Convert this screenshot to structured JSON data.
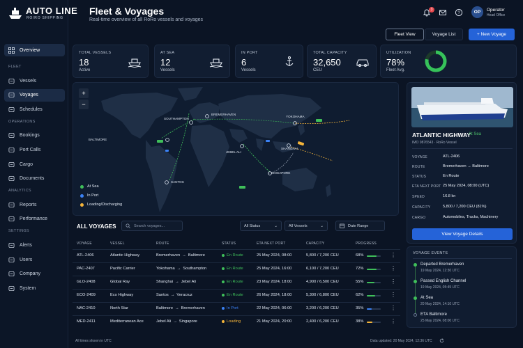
{
  "brand": {
    "name": "AUTO LINE",
    "tagline": "RO/RO SHIPPING"
  },
  "sidebar": {
    "overview": "Overview",
    "sections": [
      {
        "title": "FLEET",
        "items": [
          "Vessels",
          "Voyages",
          "Schedules"
        ]
      },
      {
        "title": "OPERATIONS",
        "items": [
          "Bookings",
          "Port Calls",
          "Cargo",
          "Documents"
        ]
      },
      {
        "title": "ANALYTICS",
        "items": [
          "Reports",
          "Performance"
        ]
      },
      {
        "title": "SETTINGS",
        "items": [
          "Alerts",
          "Users",
          "Company",
          "System"
        ]
      }
    ],
    "active": "Voyages"
  },
  "header": {
    "title": "Fleet & Voyages",
    "subtitle": "Real-time overview of all RoRo vessels and voyages",
    "notif_count": "3"
  },
  "user": {
    "initials": "OP",
    "name": "Operator",
    "role": "Head Office"
  },
  "toolbar": {
    "fleet_view": "Fleet View",
    "voyage_list": "Voyage List",
    "new_voyage": "+ New Voyage"
  },
  "kpis": [
    {
      "label": "TOTAL VESSELS",
      "value": "18",
      "sub": "Active",
      "icon": "ship-icon"
    },
    {
      "label": "AT SEA",
      "value": "12",
      "sub": "Vessels",
      "icon": "ship-waves-icon"
    },
    {
      "label": "IN PORT",
      "value": "6",
      "sub": "Vessels",
      "icon": "anchor-icon"
    },
    {
      "label": "TOTAL CAPACITY",
      "value": "32,650",
      "sub": "CEU",
      "icon": "car-icon"
    }
  ],
  "utilization": {
    "label": "UTILIZATION",
    "value": "78%",
    "sub": "Fleet Avg.",
    "fraction": 0.78
  },
  "map": {
    "zoom_in": "+",
    "zoom_out": "−",
    "ports": [
      "SOUTHAMPTON",
      "BREMERHAVEN",
      "YOKOHAMA",
      "BALTIMORE",
      "JEBEL ALI",
      "SHANGHAI",
      "SANTOS",
      "SINGAPORE"
    ],
    "legend": [
      {
        "label": "At Sea",
        "color": "#3fbf5a"
      },
      {
        "label": "In Port",
        "color": "#3b82f6"
      },
      {
        "label": "Loading/Discharging",
        "color": "#f4b43a"
      }
    ]
  },
  "voyages": {
    "title": "ALL VOYAGES",
    "search_placeholder": "Search voyages...",
    "filters": [
      "All Status",
      "All Vessels",
      "Date Range"
    ],
    "columns": [
      "VOYAGE",
      "VESSEL",
      "ROUTE",
      "STATUS",
      "ETA NEXT PORT",
      "CAPACITY",
      "PROGRESS"
    ],
    "rows": [
      {
        "voyage": "ATL-2406",
        "vessel": "Atlantic Highway",
        "from": "Bremerhaven",
        "to": "Baltimore",
        "status": "En Route",
        "status_color": "#3fbf5a",
        "eta": "25 May 2024, 08:00",
        "capacity": "5,800 / 7,200 CEU",
        "progress": "68%",
        "pval": 0.68
      },
      {
        "voyage": "PAC-2407",
        "vessel": "Pacific Carrier",
        "from": "Yokohama",
        "to": "Southampton",
        "status": "En Route",
        "status_color": "#3fbf5a",
        "eta": "25 May 2024, 16:00",
        "capacity": "6,100 / 7,200 CEU",
        "progress": "72%",
        "pval": 0.72
      },
      {
        "voyage": "GLO-2408",
        "vessel": "Global Ray",
        "from": "Shanghai",
        "to": "Jebel Ali",
        "status": "En Route",
        "status_color": "#3fbf5a",
        "eta": "23 May 2024, 18:00",
        "capacity": "4,900 / 6,500 CEU",
        "progress": "55%",
        "pval": 0.55
      },
      {
        "voyage": "ECO-2409",
        "vessel": "Eco Highway",
        "from": "Santos",
        "to": "Veracruz",
        "status": "En Route",
        "status_color": "#3fbf5a",
        "eta": "26 May 2024, 18:00",
        "capacity": "5,300 / 6,800 CEU",
        "progress": "62%",
        "pval": 0.62
      },
      {
        "voyage": "NAC-2410",
        "vessel": "North Star",
        "from": "Baltimore",
        "to": "Bremerhaven",
        "status": "In Port",
        "status_color": "#3b82f6",
        "eta": "22 May 2024, 06:00",
        "capacity": "3,200 / 6,200 CEU",
        "progress": "35%",
        "pval": 0.35
      },
      {
        "voyage": "MED-2411",
        "vessel": "Mediterranean Ace",
        "from": "Jebel Ali",
        "to": "Singapore",
        "status": "Loading",
        "status_color": "#f4b43a",
        "eta": "21 May 2024, 20:00",
        "capacity": "2,400 / 6,200 CEU",
        "progress": "38%",
        "pval": 0.38
      }
    ]
  },
  "detail": {
    "name": "ATLANTIC HIGHWAY",
    "status": "At Sea",
    "imo": "IMO 9876543 · RoRo Vessel",
    "fields": [
      {
        "label": "VOYAGE",
        "value": "ATL-2406"
      },
      {
        "label": "ROUTE",
        "value": "Bremerhaven → Baltimore"
      },
      {
        "label": "STATUS",
        "value": "En Route"
      },
      {
        "label": "ETA NEXT PORT",
        "value": "25 May 2024, 08:00 (UTC)"
      },
      {
        "label": "SPEED",
        "value": "16.8 kn"
      },
      {
        "label": "CAPACITY",
        "value": "5,800 / 7,200 CEU (81%)"
      },
      {
        "label": "CARGO",
        "value": "Automobiles, Trucks, Machinery"
      }
    ],
    "button": "View Voyage Details"
  },
  "events": {
    "title": "VOYAGE EVENTS",
    "items": [
      {
        "title": "Departed Bremerhaven",
        "time": "19 May 2024, 12:30 UTC"
      },
      {
        "title": "Passed English Channel",
        "time": "19 May 2024, 05:45 UTC"
      },
      {
        "title": "At Sea",
        "time": "20 May 2024, 14:10 UTC"
      },
      {
        "title": "ETA Baltimore",
        "time": "25 May 2024, 08:00 UTC"
      }
    ]
  },
  "footer": {
    "left": "All times shown in UTC",
    "right": "Data updated: 20 May 2024, 12:36 UTC"
  }
}
